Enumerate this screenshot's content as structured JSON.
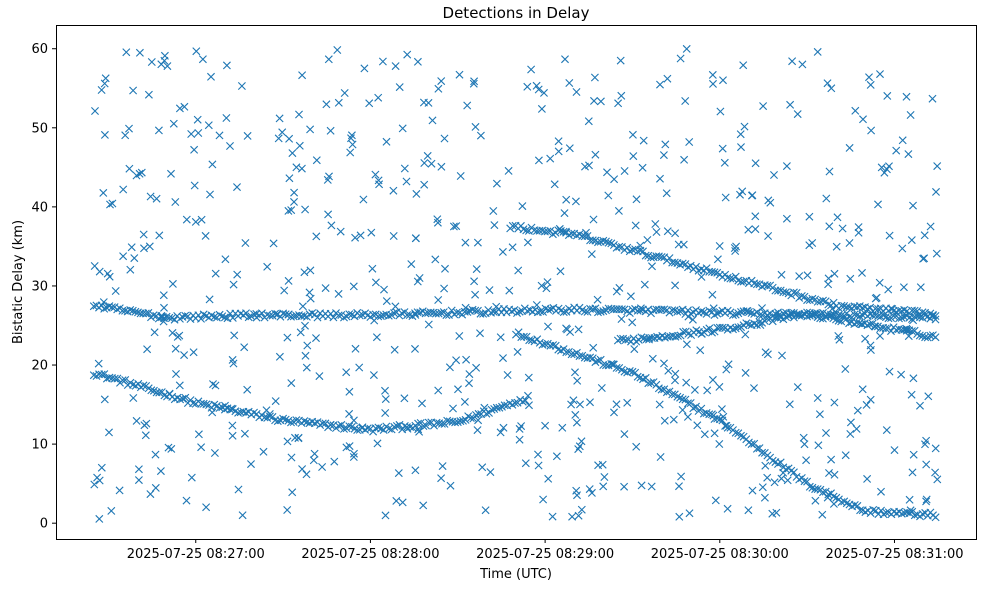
{
  "chart_data": {
    "type": "scatter",
    "title": "Detections in Delay",
    "xlabel": "Time (UTC)",
    "ylabel": "Bistatic Delay (km)",
    "x_type": "time",
    "x_range": [
      "2025-07-25 08:26:12",
      "2025-07-25 08:31:28"
    ],
    "xticks": [
      "2025-07-25 08:27:00",
      "2025-07-25 08:28:00",
      "2025-07-25 08:29:00",
      "2025-07-25 08:30:00",
      "2025-07-25 08:31:00"
    ],
    "ylim": [
      -2,
      63
    ],
    "yticks": [
      0,
      10,
      20,
      30,
      40,
      50,
      60
    ],
    "grid": false,
    "legend": "none",
    "marker": "x",
    "color": "#1f77b4",
    "tracks": [
      {
        "x": [
          "2025-07-25 08:26:25",
          "2025-07-25 08:27:00",
          "2025-07-25 08:27:30",
          "2025-07-25 08:28:00",
          "2025-07-25 08:28:30",
          "2025-07-25 08:28:55"
        ],
        "y": [
          19.0,
          15.2,
          13.0,
          11.8,
          12.8,
          16.0
        ]
      },
      {
        "x": [
          "2025-07-25 08:28:50",
          "2025-07-25 08:29:30",
          "2025-07-25 08:30:00",
          "2025-07-25 08:30:30",
          "2025-07-25 08:30:50",
          "2025-07-25 08:31:15"
        ],
        "y": [
          24.0,
          19.0,
          13.0,
          5.0,
          1.5,
          1.0
        ]
      },
      {
        "x": [
          "2025-07-25 08:26:25",
          "2025-07-25 08:26:50",
          "2025-07-25 08:27:20",
          "2025-07-25 08:28:00",
          "2025-07-25 08:28:45",
          "2025-07-25 08:29:10",
          "2025-07-25 08:29:40",
          "2025-07-25 08:30:10",
          "2025-07-25 08:30:40",
          "2025-07-25 08:31:15"
        ],
        "y": [
          27.5,
          26.0,
          26.3,
          26.3,
          26.8,
          27.0,
          26.8,
          26.5,
          26.3,
          26.0
        ]
      },
      {
        "x": [
          "2025-07-25 08:28:48",
          "2025-07-25 08:29:10",
          "2025-07-25 08:29:40",
          "2025-07-25 08:30:10",
          "2025-07-25 08:30:40",
          "2025-07-25 08:31:15"
        ],
        "y": [
          37.5,
          36.5,
          33.5,
          30.5,
          27.5,
          26.3
        ]
      },
      {
        "x": [
          "2025-07-25 08:29:25",
          "2025-07-25 08:30:00",
          "2025-07-25 08:30:30",
          "2025-07-25 08:31:15"
        ],
        "y": [
          23.0,
          24.5,
          26.5,
          23.5
        ]
      }
    ],
    "clutter": {
      "x_range": [
        "2025-07-25 08:26:25",
        "2025-07-25 08:31:15"
      ],
      "y_range": [
        0.5,
        60
      ],
      "count": 700
    }
  }
}
